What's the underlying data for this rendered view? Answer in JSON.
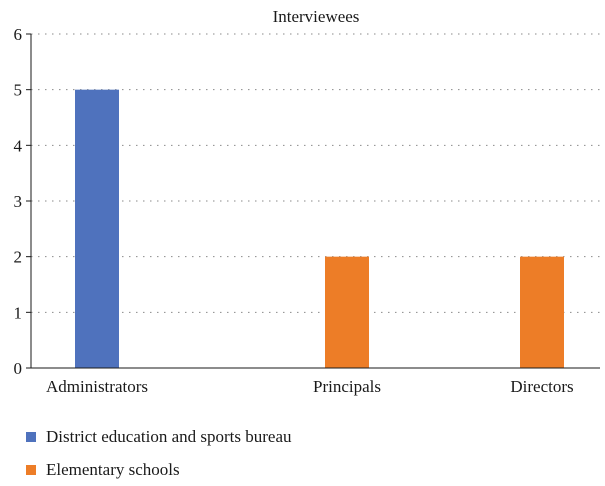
{
  "chart_data": {
    "type": "bar",
    "title": "Interviewees",
    "xlabel": "",
    "ylabel": "",
    "categories": [
      "Administrators",
      "Principals",
      "Directors"
    ],
    "series": [
      {
        "name": "District education and sports bureau",
        "color": "#4f72bd",
        "values": [
          5,
          0,
          0
        ]
      },
      {
        "name": "Elementary schools",
        "color": "#ed7d27",
        "values": [
          0,
          2,
          2
        ]
      }
    ],
    "ylim": [
      0,
      6
    ],
    "yticks": [
      "0",
      "1",
      "2",
      "3",
      "4",
      "5",
      "6"
    ],
    "grid": true,
    "legend_position": "bottom-left"
  }
}
